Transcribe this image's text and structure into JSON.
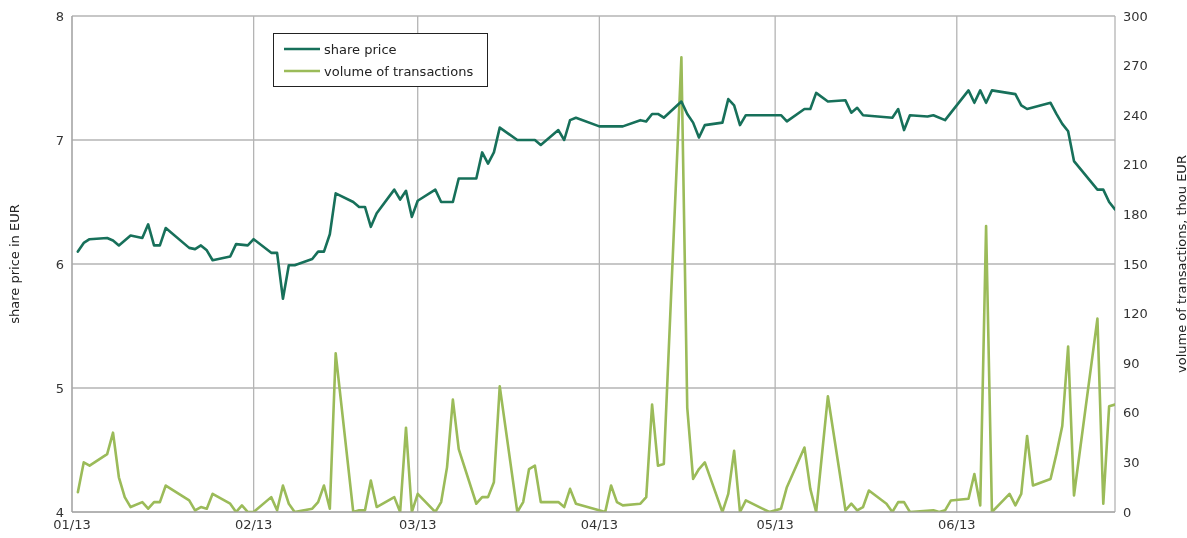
{
  "chart_data": {
    "type": "line",
    "ylabel": "share price in EUR",
    "y2label": "volume of transactions, thou EUR",
    "xlim": [
      "2013-01-01",
      "2013-06-28"
    ],
    "xticks": [
      {
        "value": "2013-01-01",
        "label": "01/13"
      },
      {
        "value": "2013-02-01",
        "label": "02/13"
      },
      {
        "value": "2013-03-01",
        "label": "03/13"
      },
      {
        "value": "2013-04-01",
        "label": "04/13"
      },
      {
        "value": "2013-05-01",
        "label": "05/13"
      },
      {
        "value": "2013-06-01",
        "label": "06/13"
      }
    ],
    "ylim": [
      4,
      8
    ],
    "yticks": [
      4,
      5,
      6,
      7,
      8
    ],
    "y2lim": [
      0,
      300
    ],
    "y2ticks": [
      0,
      30,
      60,
      90,
      120,
      150,
      180,
      210,
      240,
      270,
      300
    ],
    "grid": true,
    "legend": "top left",
    "marker": "none",
    "line_style": "solid",
    "series": [
      {
        "name": "share price",
        "color": "#17705a",
        "x": [
          "2013-01-02",
          "2013-01-03",
          "2013-01-04",
          "2013-01-07",
          "2013-01-08",
          "2013-01-09",
          "2013-01-11",
          "2013-01-13",
          "2013-01-14",
          "2013-01-15",
          "2013-01-16",
          "2013-01-17",
          "2013-01-21",
          "2013-01-22",
          "2013-01-23",
          "2013-01-24",
          "2013-01-25",
          "2013-01-28",
          "2013-01-29",
          "2013-01-31",
          "2013-02-01",
          "2013-02-04",
          "2013-02-05",
          "2013-02-06",
          "2013-02-07",
          "2013-02-08",
          "2013-02-11",
          "2013-02-12",
          "2013-02-13",
          "2013-02-14",
          "2013-02-15",
          "2013-02-18",
          "2013-02-19",
          "2013-02-20",
          "2013-02-21",
          "2013-02-22",
          "2013-02-25",
          "2013-02-26",
          "2013-02-27",
          "2013-02-28",
          "2013-03-01",
          "2013-03-04",
          "2013-03-05",
          "2013-03-07",
          "2013-03-08",
          "2013-03-11",
          "2013-03-12",
          "2013-03-13",
          "2013-03-14",
          "2013-03-15",
          "2013-03-18",
          "2013-03-21",
          "2013-03-22",
          "2013-03-25",
          "2013-03-26",
          "2013-03-27",
          "2013-03-28",
          "2013-04-01",
          "2013-04-05",
          "2013-04-08",
          "2013-04-09",
          "2013-04-10",
          "2013-04-11",
          "2013-04-12",
          "2013-04-15",
          "2013-04-16",
          "2013-04-17",
          "2013-04-18",
          "2013-04-19",
          "2013-04-22",
          "2013-04-23",
          "2013-04-24",
          "2013-04-25",
          "2013-04-26",
          "2013-05-02",
          "2013-05-03",
          "2013-05-06",
          "2013-05-07",
          "2013-05-08",
          "2013-05-10",
          "2013-05-13",
          "2013-05-14",
          "2013-05-15",
          "2013-05-16",
          "2013-05-21",
          "2013-05-22",
          "2013-05-23",
          "2013-05-24",
          "2013-05-27",
          "2013-05-28",
          "2013-05-30",
          "2013-06-03",
          "2013-06-04",
          "2013-06-05",
          "2013-06-06",
          "2013-06-07",
          "2013-06-11",
          "2013-06-12",
          "2013-06-13",
          "2013-06-17",
          "2013-06-18",
          "2013-06-19",
          "2013-06-20",
          "2013-06-21",
          "2013-06-25",
          "2013-06-26",
          "2013-06-27",
          "2013-06-28"
        ],
        "values": [
          6.1,
          6.17,
          6.2,
          6.21,
          6.19,
          6.15,
          6.23,
          6.21,
          6.32,
          6.15,
          6.15,
          6.29,
          6.13,
          6.12,
          6.15,
          6.11,
          6.03,
          6.06,
          6.16,
          6.15,
          6.2,
          6.09,
          6.09,
          5.72,
          5.99,
          5.99,
          6.04,
          6.1,
          6.1,
          6.24,
          6.57,
          6.5,
          6.46,
          6.46,
          6.3,
          6.41,
          6.6,
          6.52,
          6.59,
          6.38,
          6.51,
          6.6,
          6.5,
          6.5,
          6.69,
          6.69,
          6.9,
          6.81,
          6.9,
          7.1,
          7.0,
          7.0,
          6.96,
          7.08,
          7.0,
          7.16,
          7.18,
          7.11,
          7.11,
          7.16,
          7.15,
          7.21,
          7.21,
          7.18,
          7.31,
          7.21,
          7.14,
          7.02,
          7.12,
          7.14,
          7.33,
          7.28,
          7.12,
          7.2,
          7.2,
          7.15,
          7.25,
          7.25,
          7.38,
          7.31,
          7.32,
          7.22,
          7.26,
          7.2,
          7.18,
          7.25,
          7.08,
          7.2,
          7.19,
          7.2,
          7.16,
          7.4,
          7.3,
          7.4,
          7.3,
          7.4,
          7.37,
          7.28,
          7.25,
          7.3,
          7.21,
          7.13,
          7.07,
          6.83,
          6.6,
          6.6,
          6.5,
          6.44
        ]
      },
      {
        "name": "volume of transactions",
        "color": "#9bbb59",
        "axis": "y2",
        "x": [
          "2013-01-02",
          "2013-01-03",
          "2013-01-04",
          "2013-01-07",
          "2013-01-08",
          "2013-01-09",
          "2013-01-10",
          "2013-01-11",
          "2013-01-13",
          "2013-01-14",
          "2013-01-15",
          "2013-01-16",
          "2013-01-17",
          "2013-01-21",
          "2013-01-22",
          "2013-01-23",
          "2013-01-24",
          "2013-01-25",
          "2013-01-28",
          "2013-01-29",
          "2013-01-30",
          "2013-01-31",
          "2013-02-01",
          "2013-02-04",
          "2013-02-05",
          "2013-02-06",
          "2013-02-07",
          "2013-02-08",
          "2013-02-11",
          "2013-02-12",
          "2013-02-13",
          "2013-02-14",
          "2013-02-15",
          "2013-02-18",
          "2013-02-19",
          "2013-02-20",
          "2013-02-21",
          "2013-02-22",
          "2013-02-25",
          "2013-02-26",
          "2013-02-27",
          "2013-02-28",
          "2013-03-01",
          "2013-03-04",
          "2013-03-05",
          "2013-03-06",
          "2013-03-07",
          "2013-03-08",
          "2013-03-11",
          "2013-03-12",
          "2013-03-13",
          "2013-03-14",
          "2013-03-15",
          "2013-03-18",
          "2013-03-19",
          "2013-03-20",
          "2013-03-21",
          "2013-03-22",
          "2013-03-25",
          "2013-03-26",
          "2013-03-27",
          "2013-03-28",
          "2013-04-02",
          "2013-04-03",
          "2013-04-04",
          "2013-04-05",
          "2013-04-08",
          "2013-04-09",
          "2013-04-10",
          "2013-04-11",
          "2013-04-12",
          "2013-04-15",
          "2013-04-16",
          "2013-04-17",
          "2013-04-18",
          "2013-04-19",
          "2013-04-22",
          "2013-04-23",
          "2013-04-24",
          "2013-04-25",
          "2013-04-26",
          "2013-04-30",
          "2013-05-02",
          "2013-05-03",
          "2013-05-06",
          "2013-05-07",
          "2013-05-08",
          "2013-05-10",
          "2013-05-13",
          "2013-05-14",
          "2013-05-15",
          "2013-05-16",
          "2013-05-17",
          "2013-05-20",
          "2013-05-21",
          "2013-05-22",
          "2013-05-23",
          "2013-05-24",
          "2013-05-28",
          "2013-05-29",
          "2013-05-30",
          "2013-05-31",
          "2013-06-03",
          "2013-06-04",
          "2013-06-05",
          "2013-06-06",
          "2013-06-07",
          "2013-06-10",
          "2013-06-11",
          "2013-06-12",
          "2013-06-13",
          "2013-06-14",
          "2013-06-17",
          "2013-06-18",
          "2013-06-19",
          "2013-06-20",
          "2013-06-21",
          "2013-06-25",
          "2013-06-26",
          "2013-06-27",
          "2013-06-28"
        ],
        "values": [
          12,
          30,
          28,
          35,
          48,
          21,
          9,
          3,
          6,
          2,
          6,
          6,
          16,
          7,
          1,
          3,
          2,
          11,
          5,
          0,
          4,
          0,
          0,
          9,
          1,
          16,
          5,
          0,
          2,
          6,
          16,
          2,
          96,
          0,
          1,
          1,
          19,
          3,
          9,
          0,
          51,
          0,
          11,
          0,
          6,
          27,
          68,
          38,
          5,
          9,
          9,
          18,
          76,
          0,
          6,
          26,
          28,
          6,
          6,
          3,
          14,
          5,
          0,
          16,
          6,
          4,
          5,
          9,
          65,
          28,
          29,
          275,
          63,
          20,
          26,
          30,
          0,
          11,
          37,
          0,
          7,
          0,
          2,
          15,
          39,
          14,
          0,
          70,
          1,
          5,
          1,
          3,
          13,
          5,
          0,
          6,
          6,
          0,
          1,
          0,
          1,
          7,
          8,
          23,
          4,
          173,
          0,
          11,
          4,
          11,
          46,
          16,
          20,
          35,
          52,
          100,
          10,
          117,
          5,
          64,
          65
        ]
      }
    ]
  }
}
